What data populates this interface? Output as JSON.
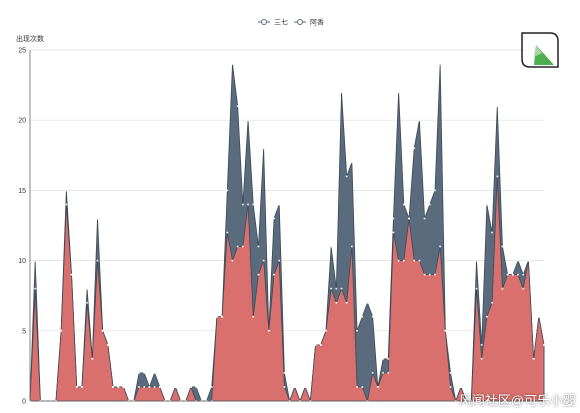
{
  "chart_data": {
    "type": "area",
    "ylabel": "出现次数",
    "ylim": [
      0,
      25
    ],
    "yticks": [
      0,
      5,
      10,
      15,
      20,
      25
    ],
    "grid": true,
    "legend_position": "top-center",
    "series": [
      {
        "name": "三七",
        "color": "#5a6b7d",
        "values": [
          0,
          10,
          0,
          0,
          0,
          0,
          5,
          15,
          9,
          1,
          1,
          8,
          3,
          13,
          5,
          4,
          1,
          1,
          1,
          0,
          0,
          2,
          2,
          1,
          2,
          1,
          0,
          0,
          1,
          0,
          0,
          1,
          1,
          0,
          0,
          1,
          6,
          6,
          15,
          24,
          21,
          14,
          20,
          14,
          11,
          18,
          5,
          13,
          14,
          2,
          0,
          1,
          0,
          1,
          0,
          4,
          4,
          5,
          11,
          8,
          22,
          16,
          17,
          5,
          6,
          7,
          6,
          1,
          3,
          3,
          13,
          22,
          14,
          13,
          18,
          20,
          13,
          14,
          15,
          24,
          5,
          2,
          0,
          1,
          0,
          0,
          10,
          4,
          14,
          12,
          21,
          11,
          9,
          9,
          10,
          9,
          10,
          3,
          6,
          4
        ]
      },
      {
        "name": "阿香",
        "color": "#d9706d",
        "values": [
          0,
          8,
          0,
          0,
          0,
          0,
          5,
          14,
          9,
          1,
          1,
          7,
          3,
          10,
          5,
          4,
          1,
          1,
          1,
          0,
          0,
          1,
          1,
          1,
          1,
          1,
          0,
          0,
          1,
          0,
          0,
          1,
          0,
          0,
          0,
          0,
          6,
          6,
          12,
          10,
          11,
          11,
          14,
          6,
          9,
          10,
          5,
          9,
          10,
          1,
          0,
          1,
          0,
          1,
          0,
          4,
          4,
          5,
          8,
          7,
          8,
          7,
          11,
          1,
          1,
          0,
          2,
          1,
          2,
          2,
          12,
          10,
          10,
          13,
          10,
          10,
          9,
          9,
          9,
          11,
          5,
          1,
          0,
          1,
          0,
          0,
          8,
          3,
          6,
          7,
          16,
          8,
          9,
          9,
          9,
          8,
          10,
          3,
          6,
          4
        ]
      }
    ]
  },
  "watermark": "风闻社区@可乐小婴"
}
